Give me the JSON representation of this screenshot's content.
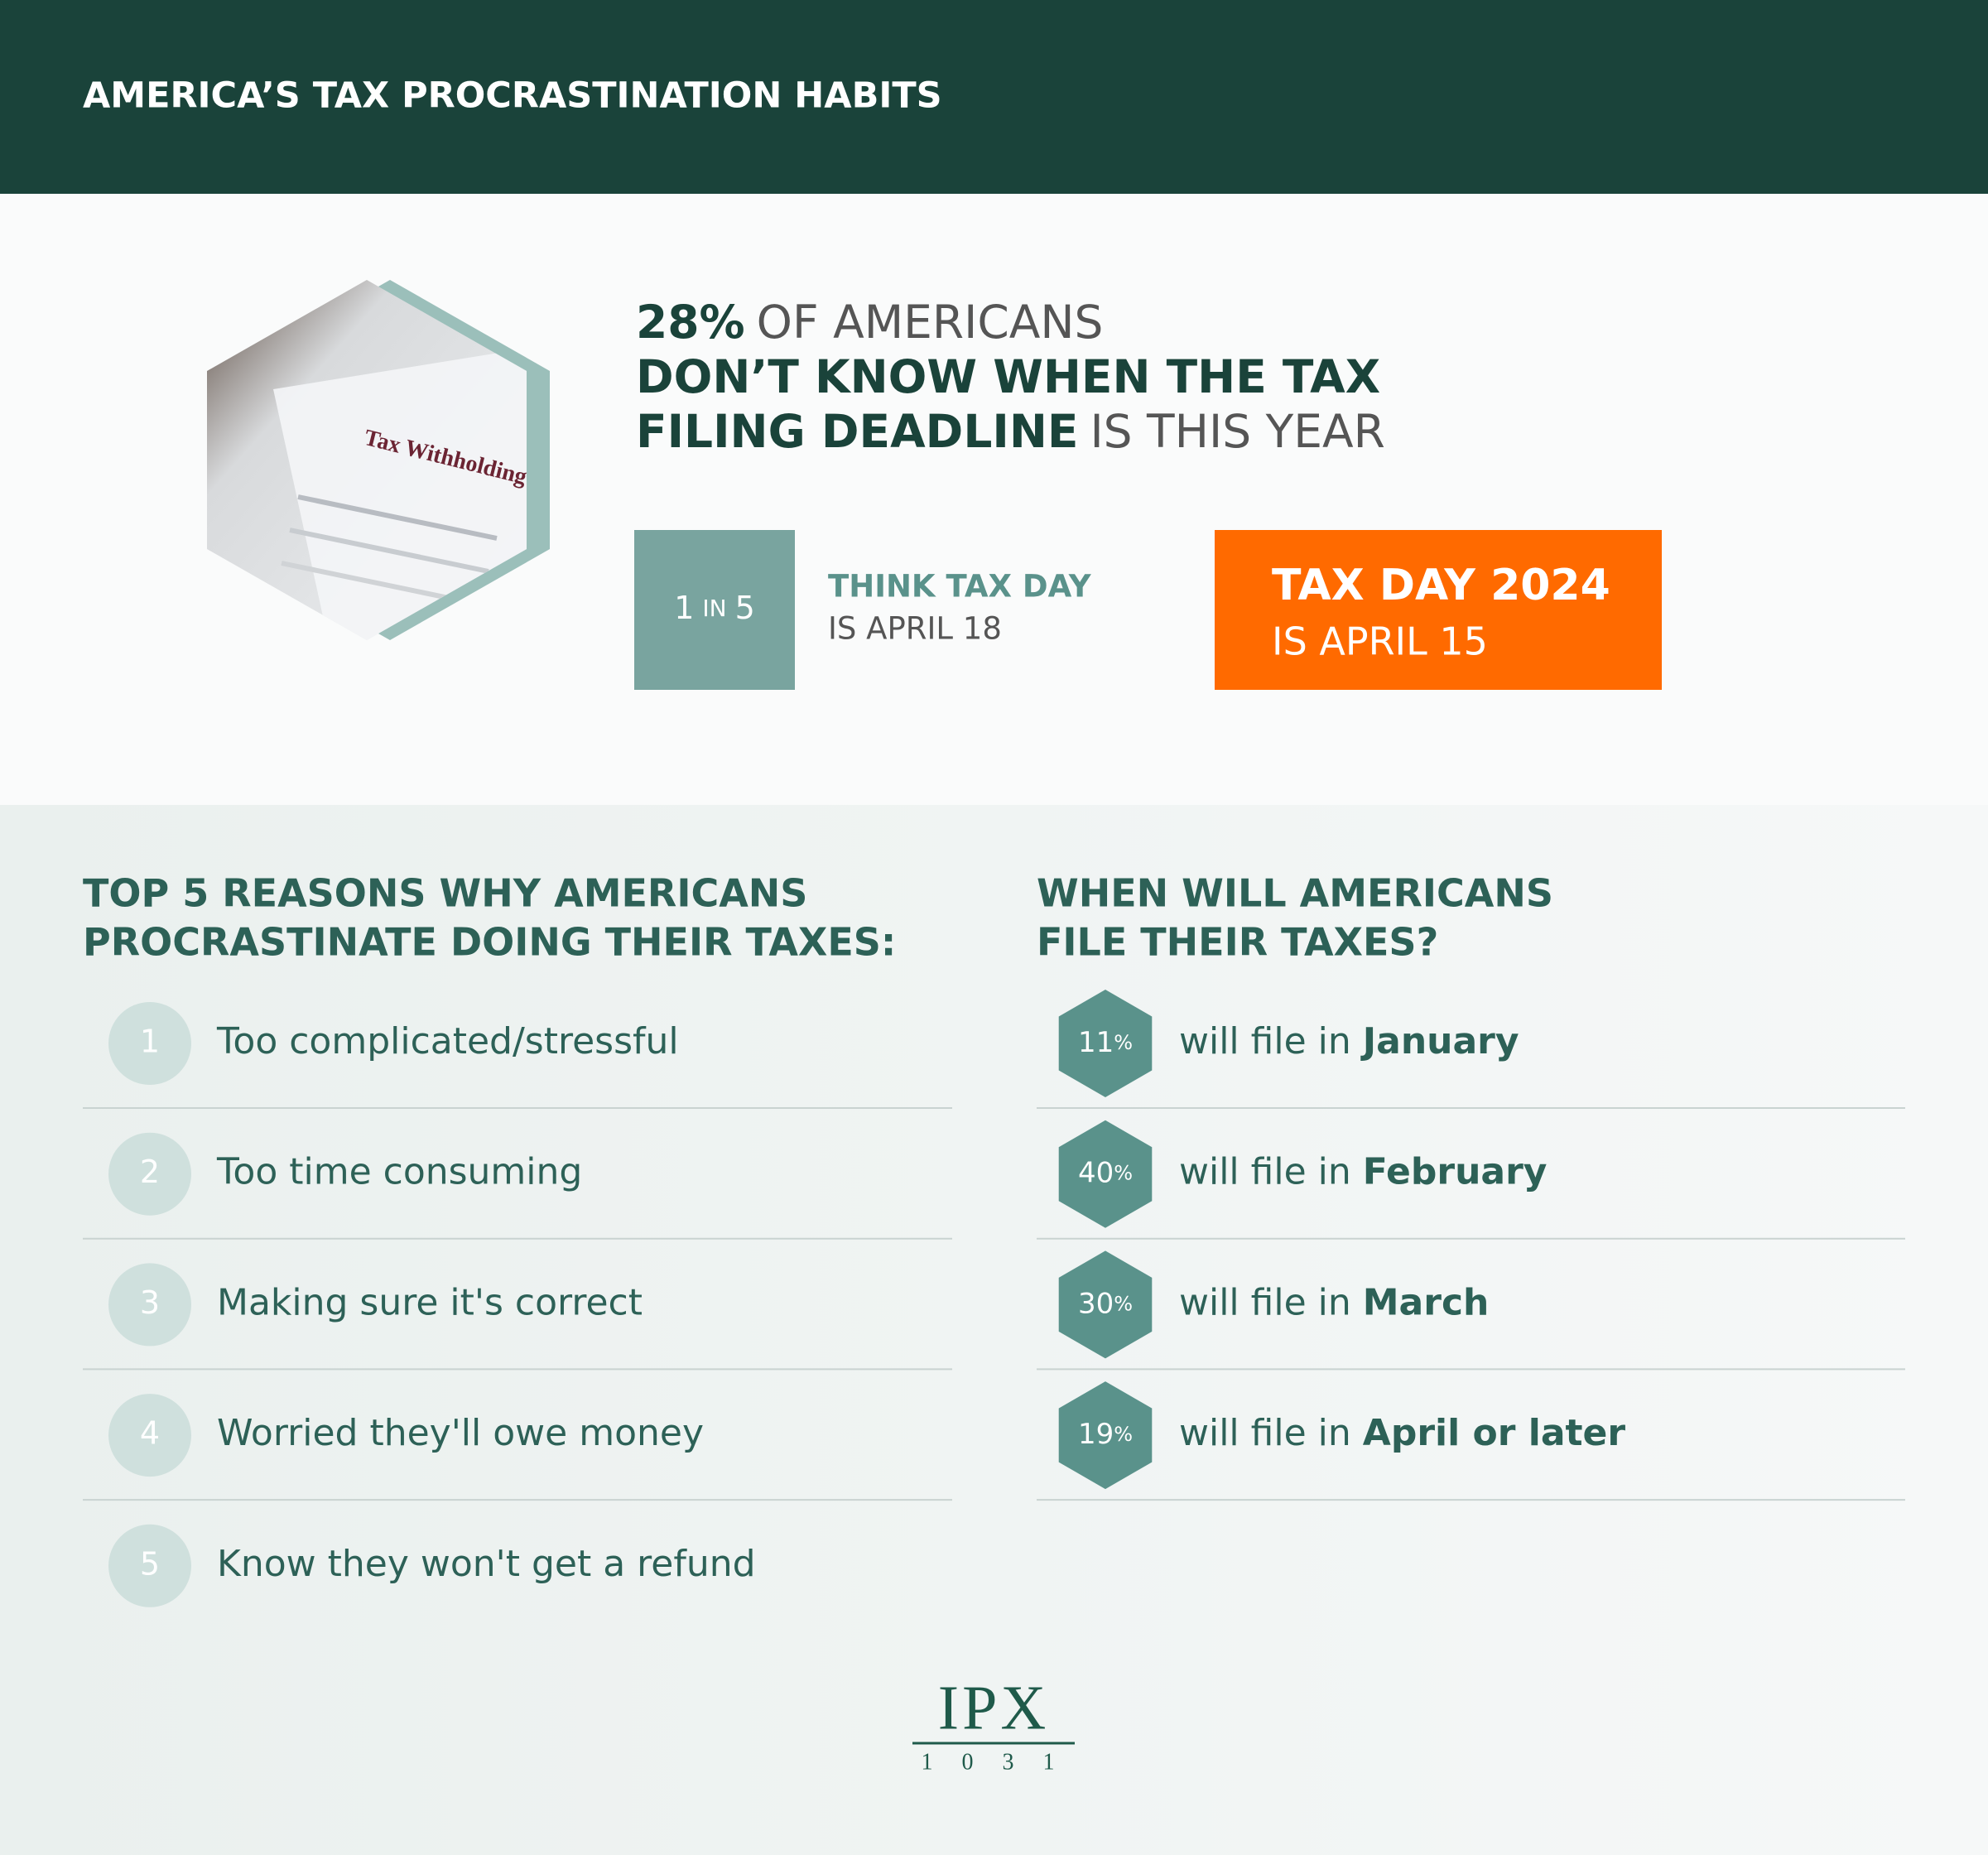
{
  "header": {
    "title": "AMERICA’S TAX PROCRASTINATION HABITS"
  },
  "hero": {
    "headline": {
      "stat": "28%",
      "line1_rest": "OF AMERICANS",
      "line2": "DON’T KNOW WHEN THE TAX",
      "line3_bold": "FILING DEADLINE",
      "line3_rest": "IS THIS YEAR"
    },
    "ratio": {
      "numerator": "1",
      "word": "IN",
      "denominator": "5"
    },
    "ratio_text": {
      "line1": "THINK TAX DAY",
      "line2": "IS APRIL 18"
    },
    "tax_day": {
      "line1": "TAX DAY 2024",
      "line2": "IS APRIL 15"
    }
  },
  "reasons": {
    "title": [
      "TOP 5 REASONS WHY AMERICANS",
      "PROCRASTINATE DOING THEIR TAXES:"
    ],
    "items": [
      {
        "number": "1",
        "text": "Too complicated/stressful"
      },
      {
        "number": "2",
        "text": "Too time consuming"
      },
      {
        "number": "3",
        "text": "Making sure it's correct"
      },
      {
        "number": "4",
        "text": "Worried they'll owe money"
      },
      {
        "number": "5",
        "text": "Know they won't get a refund"
      }
    ]
  },
  "filing": {
    "title": [
      "WHEN WILL AMERICANS",
      "FILE THEIR TAXES?"
    ],
    "items": [
      {
        "value": "11",
        "unit": "%",
        "prefix": "will file in",
        "month": "January"
      },
      {
        "value": "40",
        "unit": "%",
        "prefix": "will file in",
        "month": "February"
      },
      {
        "value": "30",
        "unit": "%",
        "prefix": "will file in",
        "month": "March"
      },
      {
        "value": "19",
        "unit": "%",
        "prefix": "will file in",
        "month": "April or later"
      }
    ]
  },
  "logo": {
    "name": "IPX",
    "number": "1 0 3 1"
  }
}
